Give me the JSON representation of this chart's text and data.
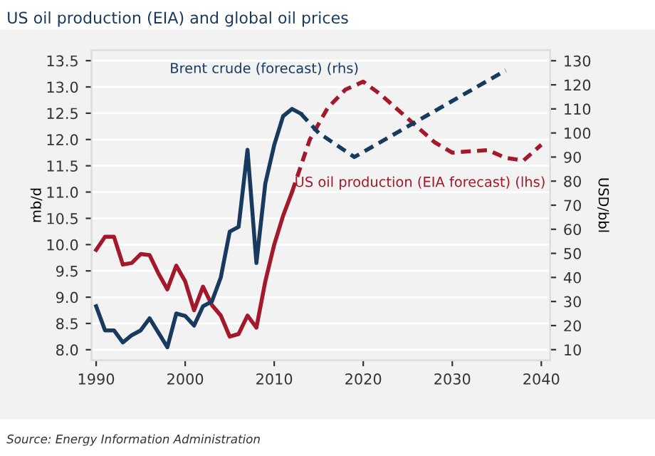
{
  "chart_data": {
    "type": "line",
    "title": "US oil production (EIA) and global oil prices",
    "xlabel": null,
    "ylabel": "mb/d",
    "y2label": "USD/bbl",
    "xlim": [
      1989.5,
      2041
    ],
    "xticks": [
      1990,
      2000,
      2010,
      2020,
      2030,
      2040
    ],
    "ylim": [
      7.8,
      13.7
    ],
    "yticks": [
      {
        "value": 8,
        "label": "8.0"
      },
      8.5,
      {
        "value": 9,
        "label": "9.0"
      },
      9.5,
      {
        "value": 10,
        "label": "10.0"
      },
      10.5,
      {
        "value": 11,
        "label": "11.0"
      },
      11.5,
      {
        "value": 12,
        "label": "12.0"
      },
      12.5,
      {
        "value": 13,
        "label": "13.0"
      },
      13.5
    ],
    "y2lim": [
      5.6,
      134.4
    ],
    "y2ticks": [
      10,
      20,
      30,
      40,
      50,
      60,
      70,
      80,
      90,
      100,
      110,
      120,
      130
    ],
    "grid": "y",
    "legend": false,
    "marker": "none",
    "series": [
      {
        "color": "#a3192b",
        "line_style": "solid",
        "x": [
          1990,
          1991,
          1992,
          1993,
          1994,
          1995,
          1996,
          1997,
          1998,
          1999,
          2000,
          2001,
          2002,
          2003,
          2004,
          2005,
          2006,
          2007,
          2008,
          2009,
          2010,
          2011,
          2012
        ],
        "values": [
          9.9,
          10.15,
          10.15,
          9.62,
          9.65,
          9.82,
          9.8,
          9.45,
          9.15,
          9.6,
          9.3,
          8.75,
          9.2,
          8.85,
          8.65,
          8.25,
          8.3,
          8.65,
          8.42,
          9.3,
          10.0,
          10.55,
          11.0
        ]
      },
      {
        "name": "US oil production (EIA forecast) (lhs)",
        "color": "#a3192b",
        "line_style": "dashed",
        "x": [
          2012,
          2014,
          2016,
          2018,
          2020,
          2022,
          2025,
          2028,
          2030,
          2034,
          2036,
          2038,
          2040
        ],
        "values": [
          11.0,
          12.0,
          12.6,
          12.95,
          13.1,
          12.85,
          12.4,
          11.95,
          11.75,
          11.8,
          11.65,
          11.6,
          11.9
        ]
      },
      {
        "axis": "y2",
        "color": "#173a5e",
        "line_style": "solid",
        "x": [
          1990,
          1991,
          1992,
          1993,
          1994,
          1995,
          1996,
          1997,
          1998,
          1999,
          2000,
          2001,
          2002,
          2003,
          2004,
          2005,
          2006,
          2007,
          2008,
          2009,
          2010,
          2011,
          2012,
          2013
        ],
        "values": [
          28,
          18,
          18,
          13,
          16,
          18,
          23,
          17,
          11,
          25,
          24,
          20,
          28,
          30,
          40,
          59,
          61,
          93,
          46,
          79,
          95,
          107,
          110,
          108
        ]
      },
      {
        "name": "Brent crude (forecast) (rhs)",
        "axis": "y2",
        "color": "#173a5e",
        "line_style": "dashed",
        "x": [
          2013,
          2015,
          2019,
          2036
        ],
        "values": [
          108,
          100,
          90,
          126
        ]
      }
    ],
    "annotations": [
      "Source: Energy Information Administration"
    ]
  }
}
